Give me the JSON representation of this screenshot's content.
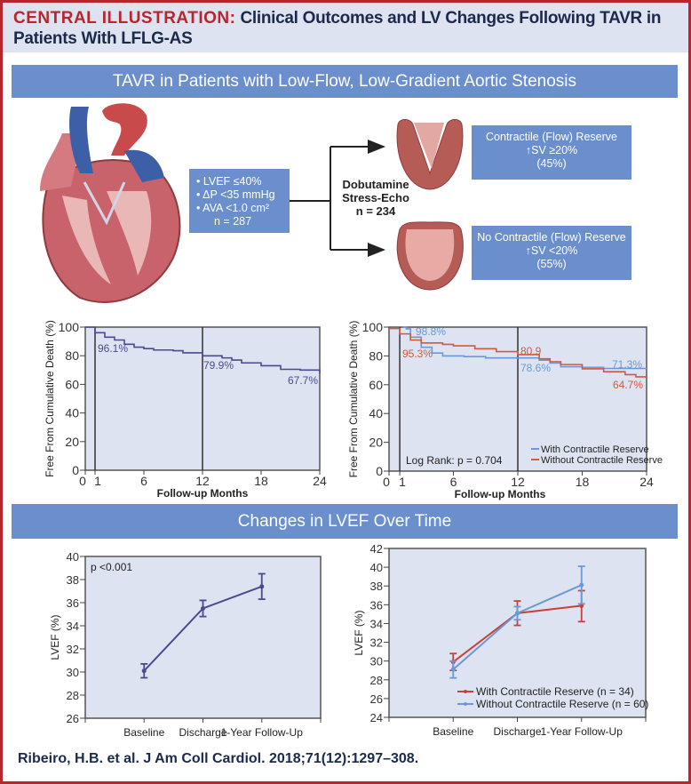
{
  "header": {
    "prefix": "CENTRAL ILLUSTRATION:",
    "title": "Clinical Outcomes and LV Changes Following TAVR in Patients With LFLG-AS"
  },
  "banner_top": "TAVR in Patients with Low-Flow, Low-Gradient Aortic Stenosis",
  "flow": {
    "criteria": [
      "• LVEF ≤40%",
      "• ΔP <35 mmHg",
      "• AVA <1.0 cm²"
    ],
    "criteria_n": "n = 287",
    "test": [
      "Dobutamine",
      "Stress-Echo"
    ],
    "test_n": "n = 234",
    "outcomes": [
      {
        "title": "Contractile (Flow) Reserve",
        "sv": "↑SV ≥20%",
        "pct": "(45%)"
      },
      {
        "title": "No Contractile (Flow) Reserve",
        "sv": "↑SV <20%",
        "pct": "(55%)"
      }
    ]
  },
  "banner_bottom": "Changes in LVEF Over Time",
  "colors": {
    "accent": "#6a8fcc",
    "brand_red": "#b5272d",
    "plot_bg": "#dde3f1",
    "overall": "#4b4a8f",
    "blue": "#6b98d8",
    "red": "#cf5b3f",
    "red_lvef": "#c8403a"
  },
  "chart_data": [
    {
      "type": "line",
      "xlabel": "Follow-up Months",
      "ylabel": "Free From Cumulative Death (%)",
      "xlim": [
        0,
        24
      ],
      "ylim": [
        0,
        100
      ],
      "xticks": [
        0,
        1,
        6,
        12,
        18,
        24
      ],
      "yticks": [
        0,
        20,
        40,
        60,
        80,
        100
      ],
      "reference_lines_x": [
        1,
        12
      ],
      "series": [
        {
          "color": "#4b4a8f",
          "x": [
            0,
            1,
            2,
            3,
            4,
            5,
            6,
            7,
            9,
            10,
            12,
            14,
            15,
            16,
            18,
            20,
            22,
            24
          ],
          "y": [
            100,
            96.1,
            93,
            91,
            88,
            86,
            85,
            84,
            83.5,
            82,
            79.9,
            78.5,
            77,
            75,
            73,
            70.5,
            70,
            67.7
          ]
        }
      ],
      "annotations": [
        "96.1%",
        "79.9%",
        "67.7%"
      ]
    },
    {
      "type": "line",
      "xlabel": "Follow-up Months",
      "ylabel": "Free From Cumulative Death (%)",
      "xlim": [
        0,
        24
      ],
      "ylim": [
        0,
        100
      ],
      "xticks": [
        0,
        1,
        6,
        12,
        18,
        24
      ],
      "yticks": [
        0,
        20,
        40,
        60,
        80,
        100
      ],
      "reference_lines_x": [
        1,
        12
      ],
      "legend_position": "bottom-right",
      "series": [
        {
          "name": "With Contractile Reserve",
          "color": "#6b98d8",
          "x": [
            1.3,
            1.6,
            2,
            3,
            4,
            5,
            7,
            9,
            12,
            14,
            15,
            16,
            18,
            20,
            24
          ],
          "y": [
            100,
            98.8,
            93,
            86,
            82,
            80,
            79.5,
            78.6,
            78.6,
            77,
            75,
            72.5,
            72,
            71.3,
            71.3
          ]
        },
        {
          "name": "Without Contractile Reserve",
          "color": "#cf5b3f",
          "x": [
            0,
            1,
            2,
            3,
            5,
            6,
            8,
            10,
            12,
            14,
            15,
            16,
            18,
            20,
            22,
            23,
            24
          ],
          "y": [
            99,
            95.3,
            91,
            89,
            88,
            87,
            85,
            83,
            80.9,
            78,
            76,
            74,
            71,
            69,
            67,
            65.5,
            64.7
          ]
        }
      ],
      "annotations": [
        "98.8%",
        "95.3%",
        "80.9",
        "78.6%",
        "71.3%",
        "64.7%"
      ],
      "stat_text": "Log Rank: p = 0.704"
    },
    {
      "type": "line",
      "ylabel": "LVEF (%)",
      "categories": [
        "Baseline",
        "Discharge",
        "1-Year Follow-Up"
      ],
      "ylim": [
        26,
        40
      ],
      "yticks": [
        26,
        28,
        30,
        32,
        34,
        36,
        38,
        40
      ],
      "series": [
        {
          "color": "#4b4a8f",
          "values": [
            30.1,
            35.5,
            37.4
          ],
          "err_low": [
            29.5,
            34.8,
            36.3
          ],
          "err_high": [
            30.7,
            36.2,
            38.5
          ]
        }
      ],
      "stat_text": "p <0.001"
    },
    {
      "type": "line",
      "ylabel": "LVEF (%)",
      "categories": [
        "Baseline",
        "Discharge",
        "1-Year Follow-Up"
      ],
      "ylim": [
        24,
        42
      ],
      "yticks": [
        24,
        26,
        28,
        30,
        32,
        34,
        36,
        38,
        40,
        42
      ],
      "legend_position": "bottom-right",
      "series": [
        {
          "name": "With Contractile Reserve (n = 34)",
          "color": "#c8403a",
          "values": [
            29.9,
            35.1,
            35.9
          ],
          "err_low": [
            29.0,
            33.8,
            34.2
          ],
          "err_high": [
            30.8,
            36.4,
            37.5
          ]
        },
        {
          "name": "Without Contractile Reserve (n = 60)",
          "color": "#6b98d8",
          "values": [
            29.1,
            35.1,
            38.1
          ],
          "err_low": [
            28.2,
            34.4,
            36.1
          ],
          "err_high": [
            30.0,
            35.8,
            40.1
          ]
        }
      ]
    }
  ],
  "citation": "Ribeiro, H.B. et al. J Am Coll Cardiol. 2018;71(12):1297–308."
}
